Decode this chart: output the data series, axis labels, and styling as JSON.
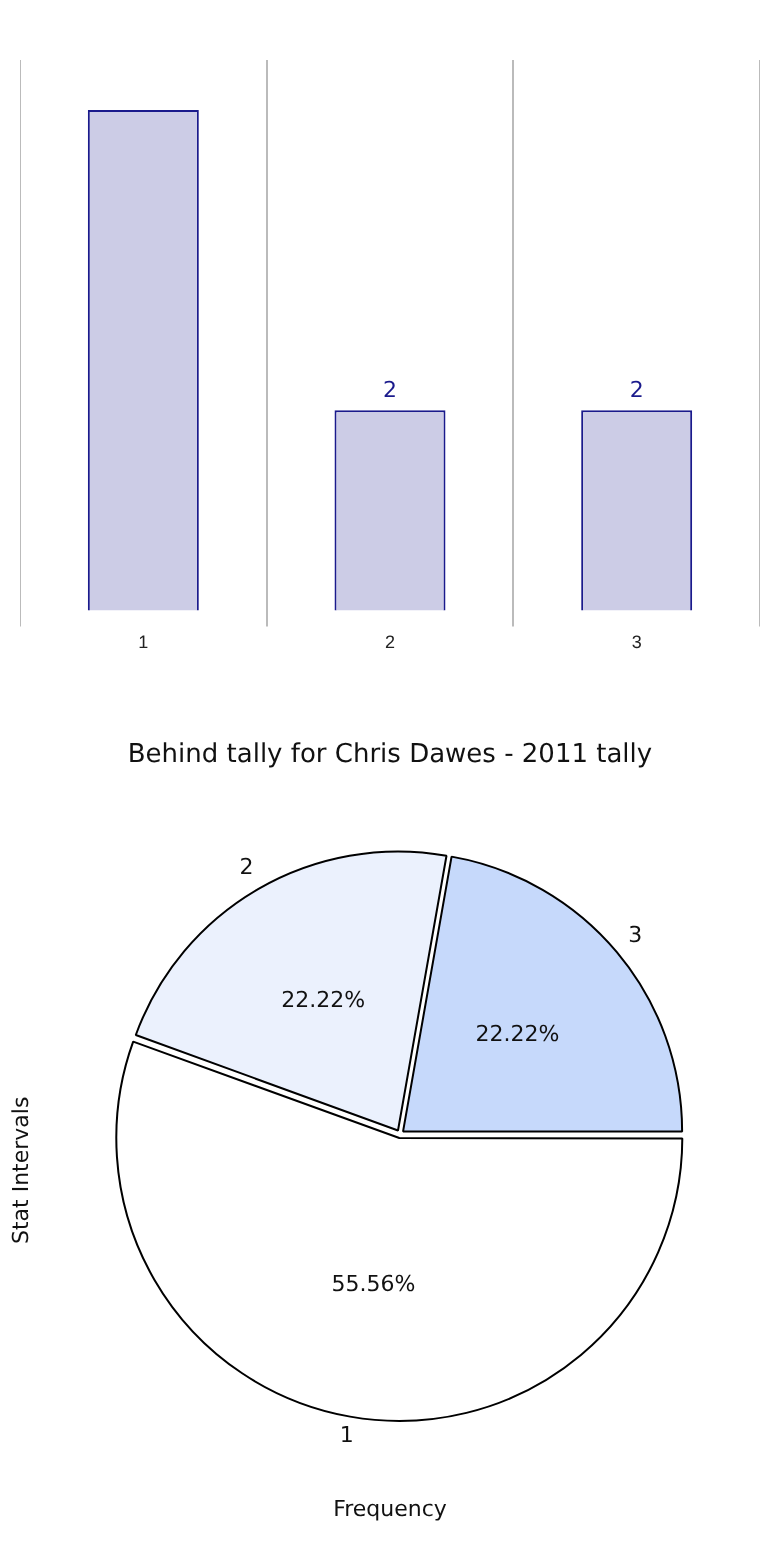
{
  "chart_data": [
    {
      "type": "bar",
      "categories": [
        "1",
        "2",
        "3"
      ],
      "values": [
        5,
        2,
        2
      ],
      "value_labels": [
        null,
        "2",
        "2"
      ],
      "color": "#ccccE6",
      "ylim": [
        0,
        5.5
      ],
      "tick_labels": "x",
      "grid": "x"
    },
    {
      "type": "pie",
      "title": "Behind tally for Chris Dawes - 2011 tally",
      "xlabel": "Frequency",
      "ylabel": "Stat Intervals",
      "categories": [
        "1",
        "2",
        "3"
      ],
      "values": [
        55.56,
        22.22,
        22.22
      ],
      "colors": [
        "#ffffff",
        "#ebf1fd",
        "#c6d9fb"
      ],
      "value_labels": [
        "55.56%",
        "22.22%",
        "22.22%"
      ]
    }
  ]
}
